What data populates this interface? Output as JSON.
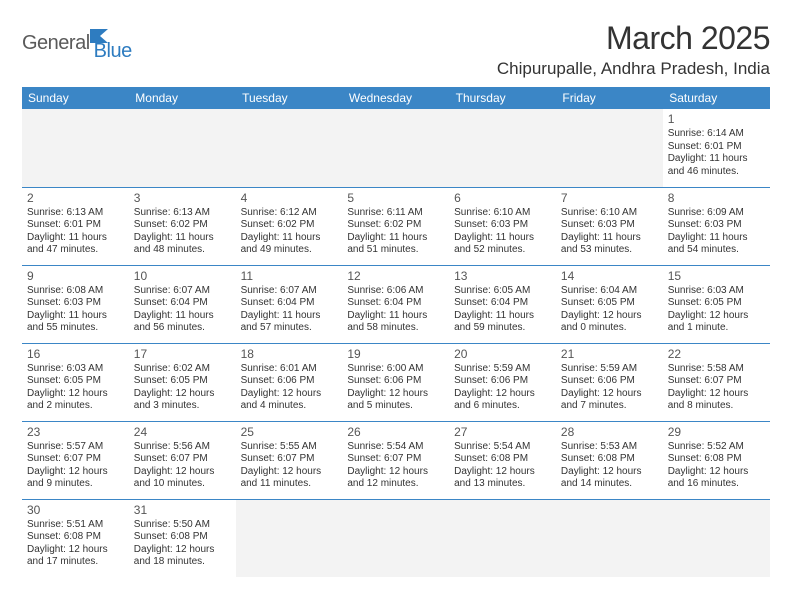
{
  "logo": {
    "word1": "General",
    "word2": "Blue"
  },
  "title": "March 2025",
  "location": "Chipurupalle, Andhra Pradesh, India",
  "weekdays": [
    "Sunday",
    "Monday",
    "Tuesday",
    "Wednesday",
    "Thursday",
    "Friday",
    "Saturday"
  ],
  "header_bg": "#3b86c6",
  "header_fg": "#ffffff",
  "row_divider": "#3b86c6",
  "empty_bg": "#f3f3f3",
  "text_color": "#333333",
  "logo_accent": "#2e7cc0",
  "font_family": "Arial",
  "title_fontsize": 32,
  "location_fontsize": 17,
  "weekday_fontsize": 12,
  "daynum_fontsize": 12,
  "cell_fontsize": 10,
  "first_weekday_index": 6,
  "days": [
    {
      "n": 1,
      "sr": "6:14 AM",
      "ss": "6:01 PM",
      "dl": "11 hours and 46 minutes."
    },
    {
      "n": 2,
      "sr": "6:13 AM",
      "ss": "6:01 PM",
      "dl": "11 hours and 47 minutes."
    },
    {
      "n": 3,
      "sr": "6:13 AM",
      "ss": "6:02 PM",
      "dl": "11 hours and 48 minutes."
    },
    {
      "n": 4,
      "sr": "6:12 AM",
      "ss": "6:02 PM",
      "dl": "11 hours and 49 minutes."
    },
    {
      "n": 5,
      "sr": "6:11 AM",
      "ss": "6:02 PM",
      "dl": "11 hours and 51 minutes."
    },
    {
      "n": 6,
      "sr": "6:10 AM",
      "ss": "6:03 PM",
      "dl": "11 hours and 52 minutes."
    },
    {
      "n": 7,
      "sr": "6:10 AM",
      "ss": "6:03 PM",
      "dl": "11 hours and 53 minutes."
    },
    {
      "n": 8,
      "sr": "6:09 AM",
      "ss": "6:03 PM",
      "dl": "11 hours and 54 minutes."
    },
    {
      "n": 9,
      "sr": "6:08 AM",
      "ss": "6:03 PM",
      "dl": "11 hours and 55 minutes."
    },
    {
      "n": 10,
      "sr": "6:07 AM",
      "ss": "6:04 PM",
      "dl": "11 hours and 56 minutes."
    },
    {
      "n": 11,
      "sr": "6:07 AM",
      "ss": "6:04 PM",
      "dl": "11 hours and 57 minutes."
    },
    {
      "n": 12,
      "sr": "6:06 AM",
      "ss": "6:04 PM",
      "dl": "11 hours and 58 minutes."
    },
    {
      "n": 13,
      "sr": "6:05 AM",
      "ss": "6:04 PM",
      "dl": "11 hours and 59 minutes."
    },
    {
      "n": 14,
      "sr": "6:04 AM",
      "ss": "6:05 PM",
      "dl": "12 hours and 0 minutes."
    },
    {
      "n": 15,
      "sr": "6:03 AM",
      "ss": "6:05 PM",
      "dl": "12 hours and 1 minute."
    },
    {
      "n": 16,
      "sr": "6:03 AM",
      "ss": "6:05 PM",
      "dl": "12 hours and 2 minutes."
    },
    {
      "n": 17,
      "sr": "6:02 AM",
      "ss": "6:05 PM",
      "dl": "12 hours and 3 minutes."
    },
    {
      "n": 18,
      "sr": "6:01 AM",
      "ss": "6:06 PM",
      "dl": "12 hours and 4 minutes."
    },
    {
      "n": 19,
      "sr": "6:00 AM",
      "ss": "6:06 PM",
      "dl": "12 hours and 5 minutes."
    },
    {
      "n": 20,
      "sr": "5:59 AM",
      "ss": "6:06 PM",
      "dl": "12 hours and 6 minutes."
    },
    {
      "n": 21,
      "sr": "5:59 AM",
      "ss": "6:06 PM",
      "dl": "12 hours and 7 minutes."
    },
    {
      "n": 22,
      "sr": "5:58 AM",
      "ss": "6:07 PM",
      "dl": "12 hours and 8 minutes."
    },
    {
      "n": 23,
      "sr": "5:57 AM",
      "ss": "6:07 PM",
      "dl": "12 hours and 9 minutes."
    },
    {
      "n": 24,
      "sr": "5:56 AM",
      "ss": "6:07 PM",
      "dl": "12 hours and 10 minutes."
    },
    {
      "n": 25,
      "sr": "5:55 AM",
      "ss": "6:07 PM",
      "dl": "12 hours and 11 minutes."
    },
    {
      "n": 26,
      "sr": "5:54 AM",
      "ss": "6:07 PM",
      "dl": "12 hours and 12 minutes."
    },
    {
      "n": 27,
      "sr": "5:54 AM",
      "ss": "6:08 PM",
      "dl": "12 hours and 13 minutes."
    },
    {
      "n": 28,
      "sr": "5:53 AM",
      "ss": "6:08 PM",
      "dl": "12 hours and 14 minutes."
    },
    {
      "n": 29,
      "sr": "5:52 AM",
      "ss": "6:08 PM",
      "dl": "12 hours and 16 minutes."
    },
    {
      "n": 30,
      "sr": "5:51 AM",
      "ss": "6:08 PM",
      "dl": "12 hours and 17 minutes."
    },
    {
      "n": 31,
      "sr": "5:50 AM",
      "ss": "6:08 PM",
      "dl": "12 hours and 18 minutes."
    }
  ],
  "labels": {
    "sunrise": "Sunrise:",
    "sunset": "Sunset:",
    "daylight": "Daylight:"
  }
}
